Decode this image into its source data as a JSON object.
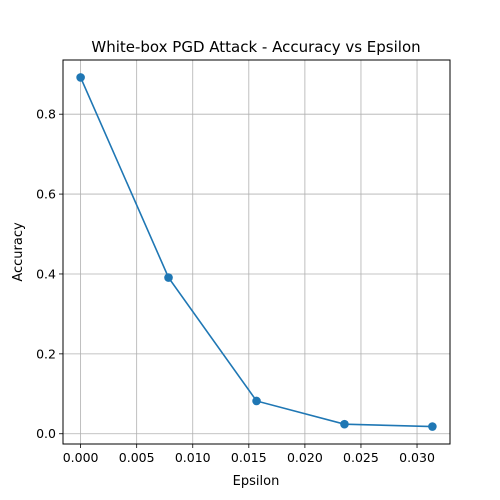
{
  "chart_data": {
    "type": "line",
    "title": "White-box PGD Attack - Accuracy vs Epsilon",
    "xlabel": "Epsilon",
    "ylabel": "Accuracy",
    "x": [
      0.0,
      0.00784,
      0.01569,
      0.02353,
      0.03137
    ],
    "series": [
      {
        "values": [
          0.892,
          0.391,
          0.082,
          0.024,
          0.018
        ],
        "color": "#1f77b4",
        "marker": "circle"
      }
    ],
    "xlim": [
      -0.00157,
      0.03294
    ],
    "ylim": [
      -0.0257,
      0.9357
    ],
    "xticks": [
      0.0,
      0.005,
      0.01,
      0.015,
      0.02,
      0.025,
      0.03
    ],
    "xtick_labels": [
      "0.000",
      "0.005",
      "0.010",
      "0.015",
      "0.020",
      "0.025",
      "0.030"
    ],
    "yticks": [
      0.0,
      0.2,
      0.4,
      0.6,
      0.8
    ],
    "ytick_labels": [
      "0.0",
      "0.2",
      "0.4",
      "0.6",
      "0.8"
    ],
    "grid": true,
    "legend": false
  }
}
